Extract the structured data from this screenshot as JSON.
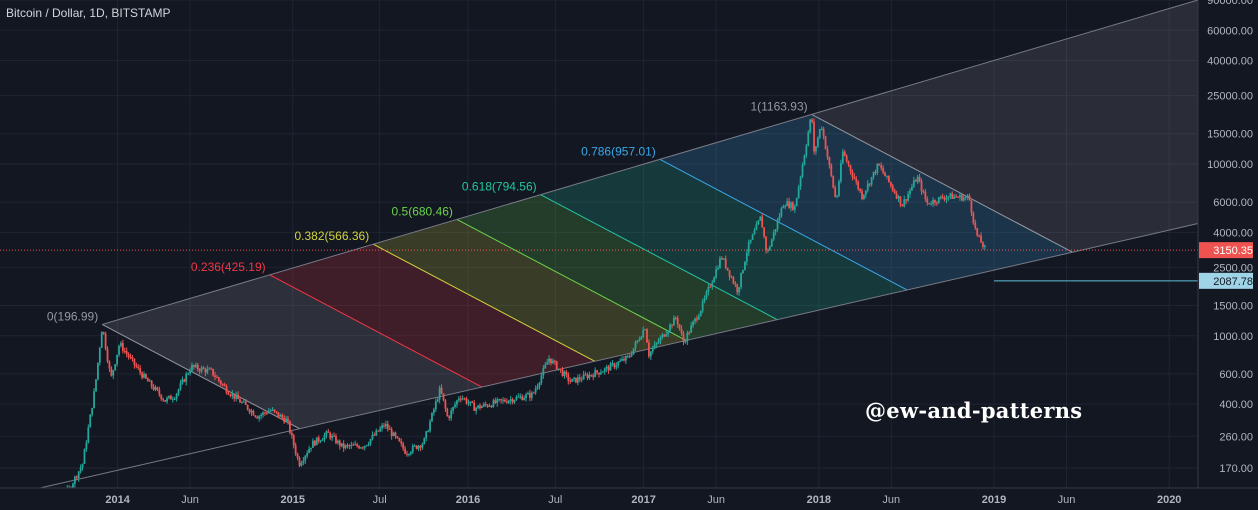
{
  "header": {
    "title": "Bitcoin / Dollar, 1D, BITSTAMP"
  },
  "watermark": "@ew-and-patterns",
  "colors": {
    "background": "#131722",
    "grid": "#1f2433",
    "bull": "#26a69a",
    "bear": "#ef5350",
    "fib_0": "#9598a1",
    "fib_236": "#f23645",
    "fib_382": "#d4d43c",
    "fib_5": "#6bd44a",
    "fib_618": "#22c6a0",
    "fib_786": "#3aa8e8",
    "fib_1": "#9598a1",
    "price_line": "#ef5350",
    "support_line": "#5cc0d9"
  },
  "chart_data": {
    "type": "candlestick",
    "title": "Bitcoin / Dollar, 1D, BITSTAMP",
    "y_scale": "log",
    "ylim": [
      130,
      90000
    ],
    "xlim": [
      "2013-05-01",
      "2020-03-01"
    ],
    "y_ticks": [
      "170.00",
      "260.00",
      "400.00",
      "600.00",
      "1000.00",
      "1500.00",
      "2500.00",
      "4000.00",
      "6000.00",
      "10000.00",
      "15000.00",
      "25000.00",
      "40000.00",
      "60000.00",
      "90000.00"
    ],
    "x_ticks": [
      {
        "label": "2014",
        "date": "2014-01-01",
        "bold": true
      },
      {
        "label": "Jun",
        "date": "2014-06-01",
        "bold": false
      },
      {
        "label": "2015",
        "date": "2015-01-01",
        "bold": true
      },
      {
        "label": "Jul",
        "date": "2015-07-01",
        "bold": false
      },
      {
        "label": "2016",
        "date": "2016-01-01",
        "bold": true
      },
      {
        "label": "Jul",
        "date": "2016-07-01",
        "bold": false
      },
      {
        "label": "2017",
        "date": "2017-01-01",
        "bold": true
      },
      {
        "label": "Jun",
        "date": "2017-06-01",
        "bold": false
      },
      {
        "label": "2018",
        "date": "2018-01-01",
        "bold": true
      },
      {
        "label": "Jun",
        "date": "2018-06-01",
        "bold": false
      },
      {
        "label": "2019",
        "date": "2019-01-01",
        "bold": true
      },
      {
        "label": "Jun",
        "date": "2019-06-01",
        "bold": false
      },
      {
        "label": "2020",
        "date": "2020-01-01",
        "bold": true
      }
    ],
    "price_path": [
      [
        "2013-06-10",
        108
      ],
      [
        "2013-08-01",
        105
      ],
      [
        "2013-09-20",
        125
      ],
      [
        "2013-10-20",
        180
      ],
      [
        "2013-11-15",
        500
      ],
      [
        "2013-11-30",
        1150
      ],
      [
        "2013-12-18",
        560
      ],
      [
        "2014-01-05",
        900
      ],
      [
        "2014-02-10",
        650
      ],
      [
        "2014-02-28",
        560
      ],
      [
        "2014-04-10",
        420
      ],
      [
        "2014-05-01",
        450
      ],
      [
        "2014-06-03",
        660
      ],
      [
        "2014-07-15",
        620
      ],
      [
        "2014-08-18",
        480
      ],
      [
        "2014-09-20",
        400
      ],
      [
        "2014-10-20",
        340
      ],
      [
        "2014-11-15",
        370
      ],
      [
        "2014-12-20",
        320
      ],
      [
        "2015-01-14",
        180
      ],
      [
        "2015-02-10",
        235
      ],
      [
        "2015-03-15",
        270
      ],
      [
        "2015-04-15",
        225
      ],
      [
        "2015-05-30",
        230
      ],
      [
        "2015-07-12",
        305
      ],
      [
        "2015-08-25",
        210
      ],
      [
        "2015-10-01",
        240
      ],
      [
        "2015-11-04",
        490
      ],
      [
        "2015-11-20",
        330
      ],
      [
        "2015-12-15",
        450
      ],
      [
        "2016-01-15",
        380
      ],
      [
        "2016-03-10",
        415
      ],
      [
        "2016-05-15",
        455
      ],
      [
        "2016-06-18",
        740
      ],
      [
        "2016-08-02",
        540
      ],
      [
        "2016-10-15",
        640
      ],
      [
        "2016-12-01",
        750
      ],
      [
        "2017-01-04",
        1130
      ],
      [
        "2017-01-12",
        780
      ],
      [
        "2017-03-10",
        1280
      ],
      [
        "2017-03-25",
        920
      ],
      [
        "2017-05-01",
        1450
      ],
      [
        "2017-06-12",
        2900
      ],
      [
        "2017-07-16",
        1830
      ],
      [
        "2017-08-05",
        3200
      ],
      [
        "2017-09-02",
        4900
      ],
      [
        "2017-09-15",
        2980
      ],
      [
        "2017-10-20",
        6000
      ],
      [
        "2017-11-12",
        5600
      ],
      [
        "2017-12-17",
        19650
      ],
      [
        "2017-12-22",
        11500
      ],
      [
        "2018-01-06",
        17100
      ],
      [
        "2018-02-06",
        6000
      ],
      [
        "2018-02-20",
        11700
      ],
      [
        "2018-04-01",
        6500
      ],
      [
        "2018-05-05",
        9900
      ],
      [
        "2018-06-24",
        5800
      ],
      [
        "2018-07-25",
        8400
      ],
      [
        "2018-08-14",
        5900
      ],
      [
        "2018-09-25",
        6500
      ],
      [
        "2018-11-10",
        6350
      ],
      [
        "2018-11-25",
        3900
      ],
      [
        "2018-12-15",
        3150
      ]
    ],
    "channel": {
      "lower_line": [
        [
          "2013-05-01",
          115
        ],
        [
          "2020-03-01",
          4500
        ]
      ],
      "upper_line": [
        [
          "2013-11-30",
          1163.93
        ],
        [
          "2020-03-01",
          90000
        ]
      ],
      "top_diagonal": [
        [
          "2017-12-17",
          19650
        ],
        [
          "2019-06-25",
          2980
        ]
      ],
      "zero_diagonal": [
        [
          "2013-11-30",
          1163.93
        ],
        [
          "2015-08-18",
          200
        ]
      ]
    },
    "fib_levels": [
      {
        "ratio": 0,
        "label": "0(196.99)",
        "color_key": "fib_0"
      },
      {
        "ratio": 0.236,
        "label": "0.236(425.19)",
        "color_key": "fib_236"
      },
      {
        "ratio": 0.382,
        "label": "0.382(566.36)",
        "color_key": "fib_382"
      },
      {
        "ratio": 0.5,
        "label": "0.5(680.46)",
        "color_key": "fib_5"
      },
      {
        "ratio": 0.618,
        "label": "0.618(794.56)",
        "color_key": "fib_618"
      },
      {
        "ratio": 0.786,
        "label": "0.786(957.01)",
        "color_key": "fib_786"
      },
      {
        "ratio": 1,
        "label": "1(1163.93)",
        "color_key": "fib_1"
      }
    ],
    "current_price": {
      "value": 3150.35,
      "label": "3150.35"
    },
    "support": {
      "value": 2087.78,
      "label": "2087.78",
      "start_date": "2019-01-01"
    }
  }
}
